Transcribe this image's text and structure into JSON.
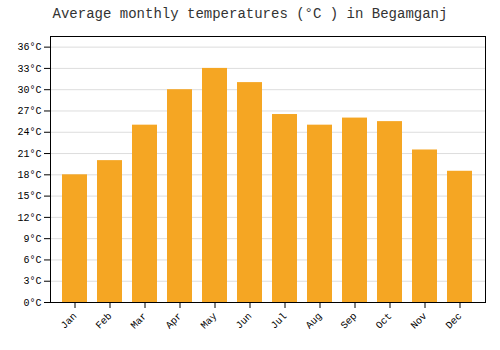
{
  "chart_data": {
    "type": "bar",
    "title": "Average monthly temperatures (°C ) in Begamganj",
    "categories": [
      "Jan",
      "Feb",
      "Mar",
      "Apr",
      "May",
      "Jun",
      "Jul",
      "Aug",
      "Sep",
      "Oct",
      "Nov",
      "Dec"
    ],
    "values": [
      18,
      20,
      25,
      30,
      33,
      31,
      26.5,
      25,
      26,
      25.5,
      21.5,
      18.5
    ],
    "color": "#F5A623",
    "ylim": [
      0,
      37.5
    ],
    "yticks": [
      {
        "value": 0,
        "label": "0°C"
      },
      {
        "value": 3,
        "label": "3°C"
      },
      {
        "value": 6,
        "label": "6°C"
      },
      {
        "value": 9,
        "label": "9°C"
      },
      {
        "value": 12,
        "label": "12°C"
      },
      {
        "value": 15,
        "label": "15°C"
      },
      {
        "value": 18,
        "label": "18°C"
      },
      {
        "value": 21,
        "label": "21°C"
      },
      {
        "value": 24,
        "label": "24°C"
      },
      {
        "value": 27,
        "label": "27°C"
      },
      {
        "value": 30,
        "label": "30°C"
      },
      {
        "value": 33,
        "label": "33°C"
      },
      {
        "value": 36,
        "label": "36°C"
      }
    ],
    "grid": true
  }
}
